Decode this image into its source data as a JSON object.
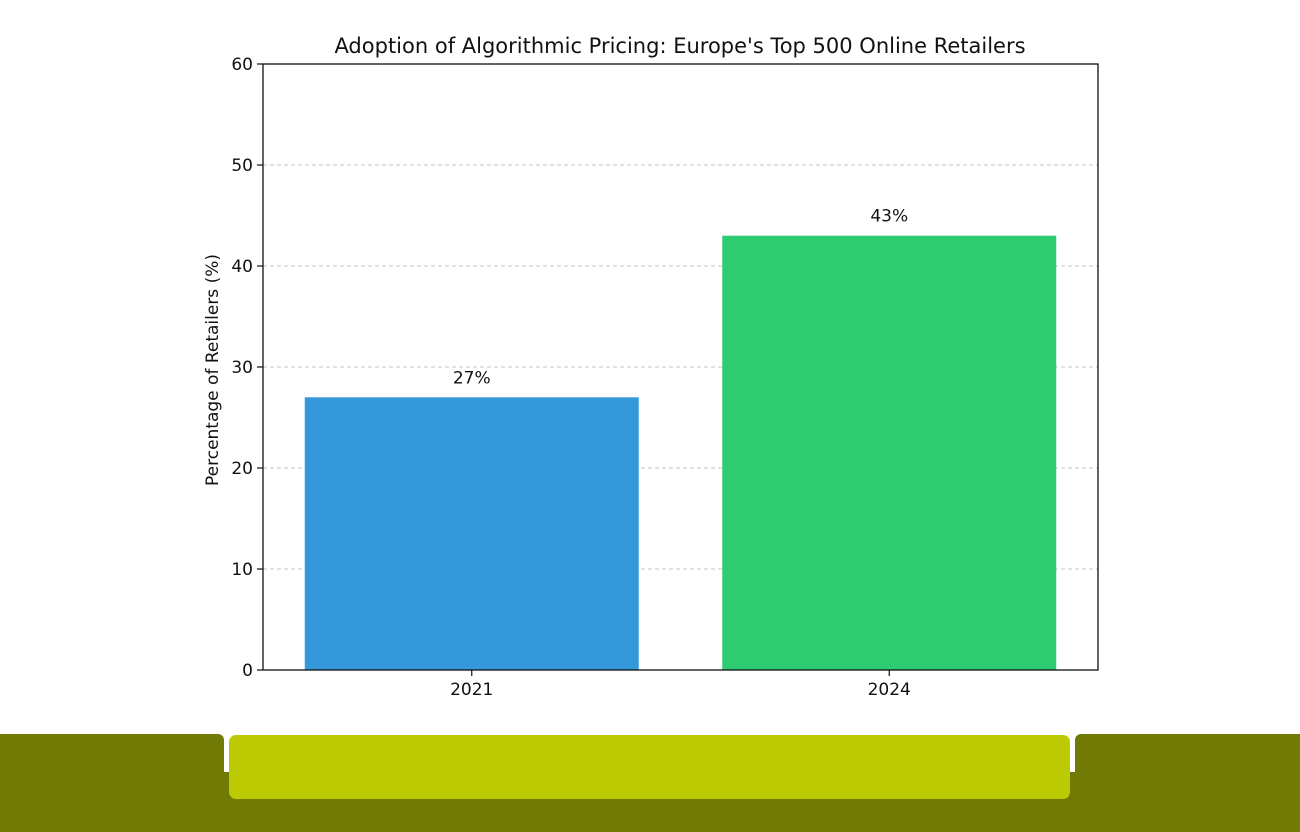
{
  "chart_data": {
    "type": "bar",
    "title": "Adoption of Algorithmic Pricing: Europe's Top 500 Online Retailers",
    "xlabel": "",
    "ylabel": "Percentage of Retailers (%)",
    "categories": [
      "2021",
      "2024"
    ],
    "values": [
      27,
      43
    ],
    "value_labels": [
      "27%",
      "43%"
    ],
    "colors": [
      "#3498db",
      "#2ecc71"
    ],
    "ylim": [
      0,
      60
    ],
    "yticks": [
      "0",
      "10",
      "20",
      "30",
      "40",
      "50",
      "60"
    ],
    "grid": "y-dashed",
    "legend": "none"
  },
  "footer": {
    "band_color": "#707a04",
    "accent_color": "#bcca04"
  }
}
